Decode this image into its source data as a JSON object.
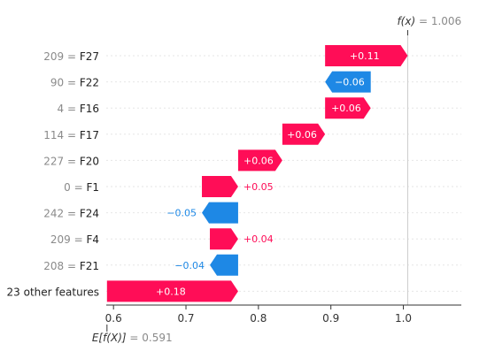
{
  "chart_data": {
    "type": "waterfall",
    "base_value": 0.591,
    "output_value": 1.006,
    "fx_label_name": "f(x)",
    "fx_label_value": "1.006",
    "efx_label_name": "E[f(X)]",
    "efx_label_value": "0.591",
    "xlim": [
      0.59,
      1.08
    ],
    "xticks": [
      0.6,
      0.7,
      0.8,
      0.9,
      1.0
    ],
    "xtick_labels": [
      "0.6",
      "0.7",
      "0.8",
      "0.9",
      "1.0"
    ],
    "colors": {
      "positive": "#ff0d57",
      "negative": "#1e88e5",
      "axis": "#333333",
      "guide": "#cccccc"
    },
    "rows": [
      {
        "value": "209",
        "feature": "F27",
        "contribution": 0.11,
        "label": "+0.11"
      },
      {
        "value": "90",
        "feature": "F22",
        "contribution": -0.06,
        "label": "−0.06"
      },
      {
        "value": "4",
        "feature": "F16",
        "contribution": 0.06,
        "label": "+0.06"
      },
      {
        "value": "114",
        "feature": "F17",
        "contribution": 0.06,
        "label": "+0.06"
      },
      {
        "value": "227",
        "feature": "F20",
        "contribution": 0.06,
        "label": "+0.06"
      },
      {
        "value": "0",
        "feature": "F1",
        "contribution": 0.05,
        "label": "+0.05"
      },
      {
        "value": "242",
        "feature": "F24",
        "contribution": -0.05,
        "label": "−0.05"
      },
      {
        "value": "209",
        "feature": "F4",
        "contribution": 0.04,
        "label": "+0.04"
      },
      {
        "value": "208",
        "feature": "F21",
        "contribution": -0.04,
        "label": "−0.04"
      },
      {
        "value": "",
        "feature": "23 other features",
        "contribution": 0.18,
        "label": "+0.18"
      }
    ],
    "bar_extents": [
      [
        0.892,
        1.006
      ],
      [
        0.892,
        0.955
      ],
      [
        0.892,
        0.955
      ],
      [
        0.833,
        0.892
      ],
      [
        0.772,
        0.833
      ],
      [
        0.722,
        0.772
      ],
      [
        0.722,
        0.772
      ],
      [
        0.733,
        0.772
      ],
      [
        0.733,
        0.772
      ],
      [
        0.591,
        0.772
      ]
    ]
  }
}
